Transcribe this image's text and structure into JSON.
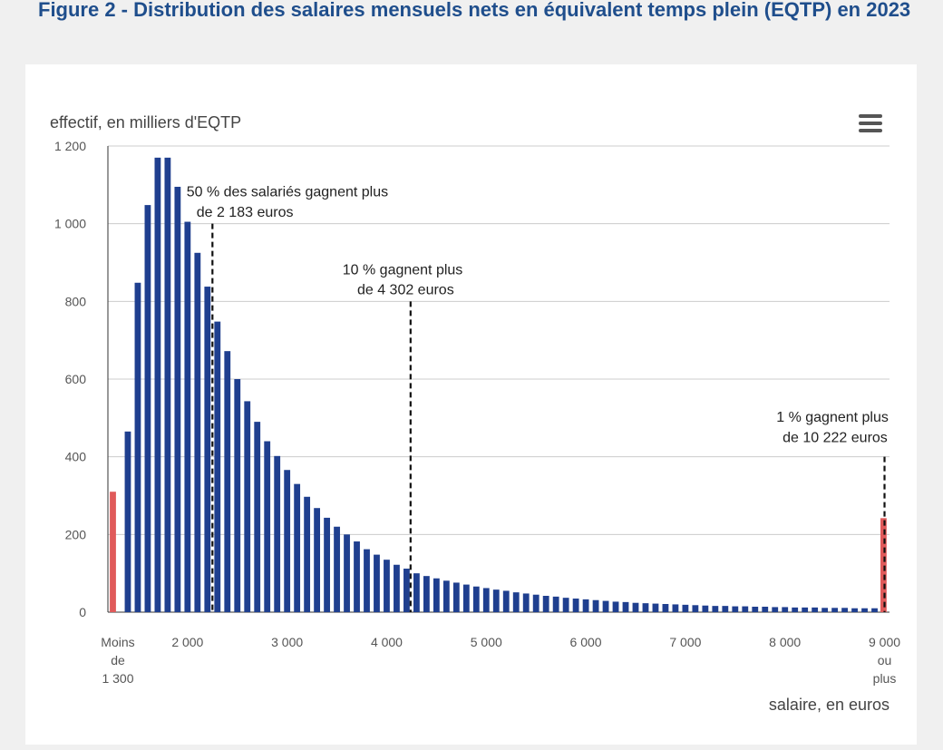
{
  "page_title": "Figure 2 - Distribution des salaires mensuels nets en équivalent temps plein (EQTP) en 2023",
  "colors": {
    "bar": "#1f3f8f",
    "bar_extreme": "#e05a5a",
    "title": "#1f4e8c",
    "grid": "#cccccc"
  },
  "menu_icon": "hamburger-menu-icon",
  "chart_data": {
    "type": "bar",
    "title": "Distribution des salaires mensuels nets en équivalent temps plein (EQTP) en 2023",
    "ylabel": "effectif, en milliers d'EQTP",
    "xlabel": "salaire, en euros",
    "ylim": [
      0,
      1200
    ],
    "yticks": [
      0,
      200,
      400,
      600,
      800,
      1000,
      1200
    ],
    "ytick_labels": [
      "0",
      "200",
      "400",
      "600",
      "800",
      "1 000",
      "1 200"
    ],
    "xlim": [
      1200,
      9050
    ],
    "xticks": [
      {
        "value": 1300,
        "lines": [
          "Moins",
          "de",
          "1 300"
        ]
      },
      {
        "value": 2000,
        "lines": [
          "2 000"
        ]
      },
      {
        "value": 3000,
        "lines": [
          "3 000"
        ]
      },
      {
        "value": 4000,
        "lines": [
          "4 000"
        ]
      },
      {
        "value": 5000,
        "lines": [
          "5 000"
        ]
      },
      {
        "value": 6000,
        "lines": [
          "6 000"
        ]
      },
      {
        "value": 7000,
        "lines": [
          "7 000"
        ]
      },
      {
        "value": 8000,
        "lines": [
          "8 000"
        ]
      },
      {
        "value": 9000,
        "lines": [
          "9 000",
          "ou",
          "plus"
        ]
      }
    ],
    "bins_start": 1400,
    "bin_width": 100,
    "values": [
      465,
      848,
      1048,
      1170,
      1170,
      1095,
      1005,
      925,
      838,
      748,
      672,
      600,
      543,
      490,
      440,
      402,
      366,
      330,
      297,
      268,
      243,
      220,
      200,
      182,
      162,
      148,
      135,
      122,
      112,
      100,
      93,
      87,
      81,
      76,
      71,
      66,
      62,
      58,
      55,
      51,
      48,
      45,
      42,
      40,
      37,
      35,
      33,
      31,
      29,
      27,
      26,
      24,
      23,
      22,
      21,
      20,
      19,
      18,
      17,
      16,
      16,
      15,
      15,
      14,
      14,
      13,
      13,
      12,
      12,
      12,
      11,
      11,
      11,
      10,
      10,
      10
    ],
    "extremes": [
      {
        "label": "Moins de 1 300",
        "x": 1250,
        "value": 310
      },
      {
        "label": "9 000 ou plus",
        "x": 8990,
        "value": 242
      }
    ],
    "annotations": [
      {
        "lines": [
          "50 % des salariés gagnent plus",
          "de 2 183 euros"
        ],
        "x": 2250,
        "line_top": 1000,
        "text_y": [
          1070,
          1018
        ],
        "anchor": "start",
        "text_x": [
          1990,
          2090
        ]
      },
      {
        "lines": [
          "10 % gagnent plus",
          "de 4 302 euros"
        ],
        "x": 4240,
        "line_top": 800,
        "text_y": [
          870,
          818
        ],
        "anchor": "middle",
        "text_x": [
          4160,
          4190
        ]
      },
      {
        "lines": [
          "1 % gagnent plus",
          "de 10 222 euros"
        ],
        "x": 9000,
        "line_top": 400,
        "text_y": [
          490,
          438
        ],
        "anchor": "end",
        "text_x": [
          9040,
          9030
        ]
      }
    ]
  }
}
